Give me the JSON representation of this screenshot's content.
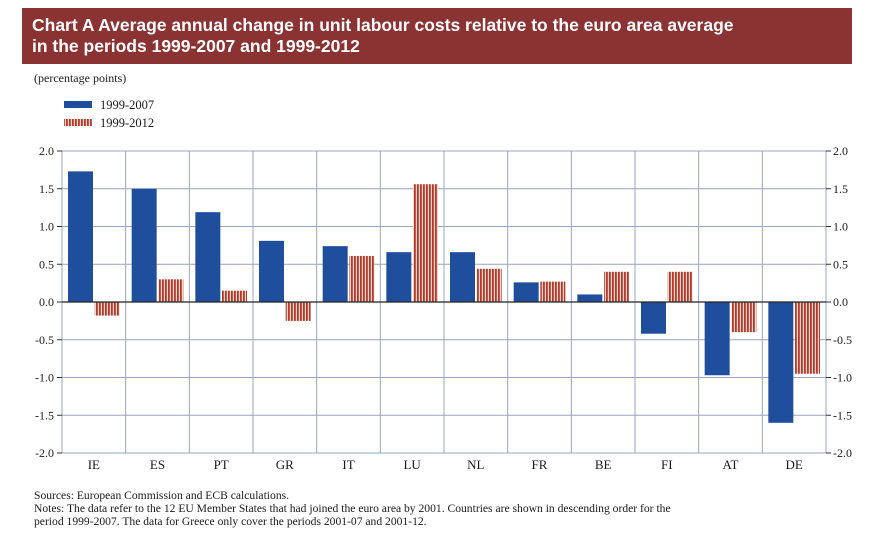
{
  "title": {
    "line1": "Chart A Average annual change in unit labour costs relative to the euro area average",
    "line2": "in the periods 1999-2007 and 1999-2012"
  },
  "units": "(percentage points)",
  "legend": [
    "1999-2007",
    "1999-2012"
  ],
  "colors": {
    "series1": "#1f4e9c",
    "series2": "#b23b30",
    "title_bg": "#8b3232",
    "grid": "#9aa4be"
  },
  "chart_data": {
    "type": "bar",
    "title": "Chart A Average annual change in unit labour costs relative to the euro area average in the periods 1999-2007 and 1999-2012",
    "ylabel": "(percentage points)",
    "categories": [
      "IE",
      "ES",
      "PT",
      "GR",
      "IT",
      "LU",
      "NL",
      "FR",
      "BE",
      "FI",
      "AT",
      "DE"
    ],
    "series": [
      {
        "name": "1999-2007",
        "values": [
          1.73,
          1.5,
          1.19,
          0.81,
          0.74,
          0.66,
          0.66,
          0.26,
          0.1,
          -0.42,
          -0.97,
          -1.6
        ]
      },
      {
        "name": "1999-2012",
        "values": [
          -0.18,
          0.3,
          0.15,
          -0.25,
          0.61,
          1.56,
          0.44,
          0.27,
          0.4,
          0.4,
          -0.4,
          -0.95
        ]
      }
    ],
    "ylim": [
      -2.0,
      2.0
    ],
    "yticks": [
      "2.0",
      "1.5",
      "1.0",
      "0.5",
      "0.0",
      "-0.5",
      "-1.0",
      "-1.5",
      "-2.0"
    ],
    "grid": true,
    "legend_position": "top-left"
  },
  "notes": {
    "sources": "Sources: European Commission and ECB calculations.",
    "notes_line1": "Notes: The data refer to the 12 EU Member States that had joined the euro area by 2001. Countries are shown in descending order for the",
    "notes_line2": "period 1999-2007. The data for Greece only cover the periods 2001-07 and 2001-12."
  }
}
